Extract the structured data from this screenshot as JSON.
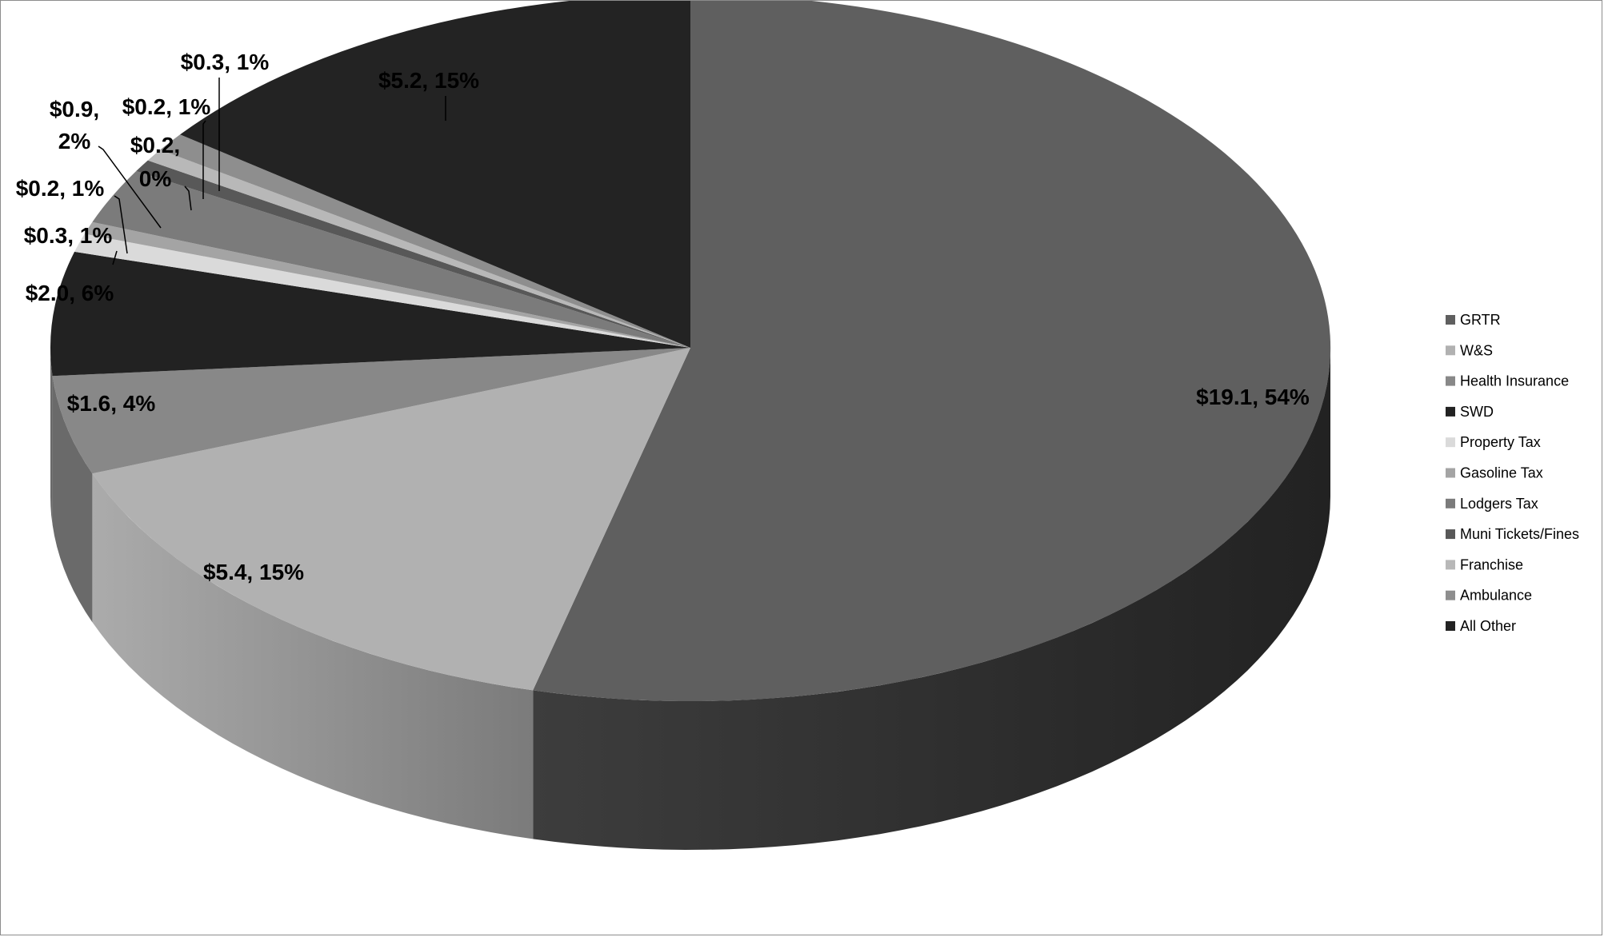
{
  "chart_data": {
    "type": "pie",
    "title": "",
    "units": "$",
    "legend_position": "right",
    "series": [
      {
        "slices": [
          {
            "name": "GRTR",
            "value": 19.1,
            "percent": 54,
            "label": "$19.1, 54%",
            "color": "#5f5f5f"
          },
          {
            "name": "W&S",
            "value": 5.4,
            "percent": 15,
            "label": "$5.4, 15%",
            "color": "#b1b1b1"
          },
          {
            "name": "Health Insurance",
            "value": 1.6,
            "percent": 4,
            "label": "$1.6, 4%",
            "color": "#888888"
          },
          {
            "name": "SWD",
            "value": 2.0,
            "percent": 6,
            "label": "$2.0, 6%",
            "color": "#222222"
          },
          {
            "name": "Property Tax",
            "value": 0.3,
            "percent": 1,
            "label": "$0.3, 1%",
            "color": "#dadada"
          },
          {
            "name": "Gasoline Tax",
            "value": 0.2,
            "percent": 1,
            "label": "$0.2, 1%",
            "color": "#a4a4a4"
          },
          {
            "name": "Lodgers Tax",
            "value": 0.9,
            "percent": 2,
            "label": "$0.9, 2%",
            "color": "#7b7b7b"
          },
          {
            "name": "Muni Tickets/Fines",
            "value": 0.2,
            "percent": 0,
            "label": "$0.2, 0%",
            "color": "#585858"
          },
          {
            "name": "Franchise",
            "value": 0.2,
            "percent": 1,
            "label": "$0.2, 1%",
            "color": "#b8b8b8"
          },
          {
            "name": "Ambulance",
            "value": 0.3,
            "percent": 1,
            "label": "$0.3, 1%",
            "color": "#8e8e8e"
          },
          {
            "name": "All Other",
            "value": 5.2,
            "percent": 15,
            "label": "$5.2, 15%",
            "color": "#232323"
          }
        ]
      }
    ]
  }
}
